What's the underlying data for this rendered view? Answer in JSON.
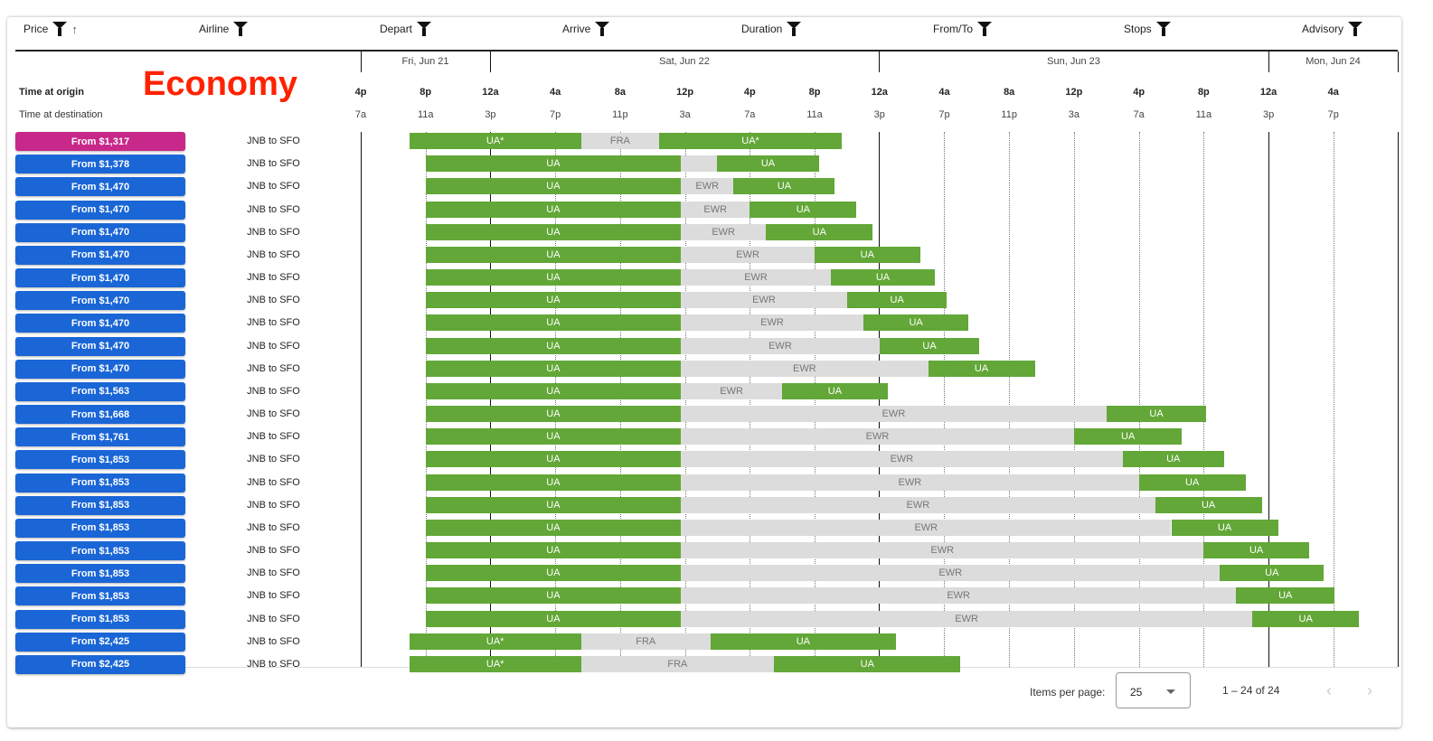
{
  "columns": [
    {
      "label": "Price",
      "sorted": "asc"
    },
    {
      "label": "Airline"
    },
    {
      "label": "Depart"
    },
    {
      "label": "Arrive"
    },
    {
      "label": "Duration"
    },
    {
      "label": "From/To"
    },
    {
      "label": "Stops"
    },
    {
      "label": "Advisory"
    }
  ],
  "cabin_label": "Economy",
  "row_labels": {
    "origin": "Time at origin",
    "destination": "Time at destination"
  },
  "dates": [
    "Fri, Jun 21",
    "Sat, Jun 22",
    "Sun, Jun 23",
    "Mon, Jun 24"
  ],
  "ticks_origin": [
    "4p",
    "8p",
    "12a",
    "4a",
    "8a",
    "12p",
    "4p",
    "8p",
    "12a",
    "4a",
    "8a",
    "12p",
    "4p",
    "8p",
    "12a",
    "4a"
  ],
  "ticks_destination": [
    "7a",
    "11a",
    "3p",
    "7p",
    "11p",
    "3a",
    "7a",
    "11a",
    "3p",
    "7p",
    "11p",
    "3a",
    "7a",
    "11a",
    "3p",
    "7p"
  ],
  "colors": {
    "highlight_price": "#c8288a",
    "price": "#1a66d6",
    "flight": "#62a737",
    "layover": "#dcdcdc"
  },
  "flights": [
    {
      "price": "From $1,317",
      "route": "JNB to SFO",
      "highlight": true,
      "legs": [
        {
          "carrier": "UA*",
          "dep": "Jun 21 19:00",
          "arr": "Jun 22 05:35"
        },
        {
          "carrier": "UA*",
          "dep": "Jun 22 10:25",
          "arr": "Jun 22 21:40"
        }
      ],
      "layover": "FRA"
    },
    {
      "price": "From $1,378",
      "route": "JNB to SFO",
      "legs": [
        {
          "carrier": "UA",
          "dep": "Jun 21 20:00",
          "arr": "Jun 22 11:45"
        },
        {
          "carrier": "UA",
          "dep": "Jun 22 14:00",
          "arr": "Jun 22 20:15"
        }
      ],
      "layover": ""
    },
    {
      "price": "From $1,470",
      "route": "JNB to SFO",
      "legs": [
        {
          "carrier": "UA",
          "dep": "Jun 21 20:00",
          "arr": "Jun 22 11:45"
        },
        {
          "carrier": "UA",
          "dep": "Jun 22 15:00",
          "arr": "Jun 22 21:15"
        }
      ],
      "layover": "EWR"
    },
    {
      "price": "From $1,470",
      "route": "JNB to SFO",
      "legs": [
        {
          "carrier": "UA",
          "dep": "Jun 21 20:00",
          "arr": "Jun 22 11:45"
        },
        {
          "carrier": "UA",
          "dep": "Jun 22 16:00",
          "arr": "Jun 22 22:35"
        }
      ],
      "layover": "EWR"
    },
    {
      "price": "From $1,470",
      "route": "JNB to SFO",
      "legs": [
        {
          "carrier": "UA",
          "dep": "Jun 21 20:00",
          "arr": "Jun 22 11:45"
        },
        {
          "carrier": "UA",
          "dep": "Jun 22 17:00",
          "arr": "Jun 22 23:35"
        }
      ],
      "layover": "EWR"
    },
    {
      "price": "From $1,470",
      "route": "JNB to SFO",
      "legs": [
        {
          "carrier": "UA",
          "dep": "Jun 21 20:00",
          "arr": "Jun 22 11:45"
        },
        {
          "carrier": "UA",
          "dep": "Jun 22 20:00",
          "arr": "Jun 23 02:30"
        }
      ],
      "layover": "EWR"
    },
    {
      "price": "From $1,470",
      "route": "JNB to SFO",
      "legs": [
        {
          "carrier": "UA",
          "dep": "Jun 21 20:00",
          "arr": "Jun 22 11:45"
        },
        {
          "carrier": "UA",
          "dep": "Jun 22 21:00",
          "arr": "Jun 23 03:25"
        }
      ],
      "layover": "EWR"
    },
    {
      "price": "From $1,470",
      "route": "JNB to SFO",
      "legs": [
        {
          "carrier": "UA",
          "dep": "Jun 21 20:00",
          "arr": "Jun 22 11:45"
        },
        {
          "carrier": "UA",
          "dep": "Jun 22 22:00",
          "arr": "Jun 23 04:10"
        }
      ],
      "layover": "EWR"
    },
    {
      "price": "From $1,470",
      "route": "JNB to SFO",
      "legs": [
        {
          "carrier": "UA",
          "dep": "Jun 21 20:00",
          "arr": "Jun 22 11:45"
        },
        {
          "carrier": "UA",
          "dep": "Jun 22 23:00",
          "arr": "Jun 23 05:30"
        }
      ],
      "layover": "EWR"
    },
    {
      "price": "From $1,470",
      "route": "JNB to SFO",
      "legs": [
        {
          "carrier": "UA",
          "dep": "Jun 21 20:00",
          "arr": "Jun 22 11:45"
        },
        {
          "carrier": "UA",
          "dep": "Jun 23 00:00",
          "arr": "Jun 23 06:10"
        }
      ],
      "layover": "EWR"
    },
    {
      "price": "From $1,470",
      "route": "JNB to SFO",
      "legs": [
        {
          "carrier": "UA",
          "dep": "Jun 21 20:00",
          "arr": "Jun 22 11:45"
        },
        {
          "carrier": "UA",
          "dep": "Jun 23 03:00",
          "arr": "Jun 23 09:35"
        }
      ],
      "layover": "EWR"
    },
    {
      "price": "From $1,563",
      "route": "JNB to SFO",
      "legs": [
        {
          "carrier": "UA",
          "dep": "Jun 21 20:00",
          "arr": "Jun 22 11:45"
        },
        {
          "carrier": "UA",
          "dep": "Jun 22 18:00",
          "arr": "Jun 23 00:30"
        }
      ],
      "layover": "EWR"
    },
    {
      "price": "From $1,668",
      "route": "JNB to SFO",
      "legs": [
        {
          "carrier": "UA",
          "dep": "Jun 21 20:00",
          "arr": "Jun 22 11:45"
        },
        {
          "carrier": "UA",
          "dep": "Jun 23 14:00",
          "arr": "Jun 23 20:10"
        }
      ],
      "layover": "EWR"
    },
    {
      "price": "From $1,761",
      "route": "JNB to SFO",
      "legs": [
        {
          "carrier": "UA",
          "dep": "Jun 21 20:00",
          "arr": "Jun 22 11:45"
        },
        {
          "carrier": "UA",
          "dep": "Jun 23 12:00",
          "arr": "Jun 23 18:40"
        }
      ],
      "layover": "EWR"
    },
    {
      "price": "From $1,853",
      "route": "JNB to SFO",
      "legs": [
        {
          "carrier": "UA",
          "dep": "Jun 21 20:00",
          "arr": "Jun 22 11:45"
        },
        {
          "carrier": "UA",
          "dep": "Jun 23 15:00",
          "arr": "Jun 23 21:15"
        }
      ],
      "layover": "EWR"
    },
    {
      "price": "From $1,853",
      "route": "JNB to SFO",
      "legs": [
        {
          "carrier": "UA",
          "dep": "Jun 21 20:00",
          "arr": "Jun 22 11:45"
        },
        {
          "carrier": "UA",
          "dep": "Jun 23 16:00",
          "arr": "Jun 23 22:35"
        }
      ],
      "layover": "EWR"
    },
    {
      "price": "From $1,853",
      "route": "JNB to SFO",
      "legs": [
        {
          "carrier": "UA",
          "dep": "Jun 21 20:00",
          "arr": "Jun 22 11:45"
        },
        {
          "carrier": "UA",
          "dep": "Jun 23 17:00",
          "arr": "Jun 23 23:35"
        }
      ],
      "layover": "EWR"
    },
    {
      "price": "From $1,853",
      "route": "JNB to SFO",
      "legs": [
        {
          "carrier": "UA",
          "dep": "Jun 21 20:00",
          "arr": "Jun 22 11:45"
        },
        {
          "carrier": "UA",
          "dep": "Jun 23 18:00",
          "arr": "Jun 24 00:35"
        }
      ],
      "layover": "EWR"
    },
    {
      "price": "From $1,853",
      "route": "JNB to SFO",
      "legs": [
        {
          "carrier": "UA",
          "dep": "Jun 21 20:00",
          "arr": "Jun 22 11:45"
        },
        {
          "carrier": "UA",
          "dep": "Jun 23 20:00",
          "arr": "Jun 24 02:30"
        }
      ],
      "layover": "EWR"
    },
    {
      "price": "From $1,853",
      "route": "JNB to SFO",
      "legs": [
        {
          "carrier": "UA",
          "dep": "Jun 21 20:00",
          "arr": "Jun 22 11:45"
        },
        {
          "carrier": "UA",
          "dep": "Jun 23 21:00",
          "arr": "Jun 24 03:25"
        }
      ],
      "layover": "EWR"
    },
    {
      "price": "From $1,853",
      "route": "JNB to SFO",
      "legs": [
        {
          "carrier": "UA",
          "dep": "Jun 21 20:00",
          "arr": "Jun 22 11:45"
        },
        {
          "carrier": "UA",
          "dep": "Jun 23 22:00",
          "arr": "Jun 24 04:05"
        }
      ],
      "layover": "EWR"
    },
    {
      "price": "From $1,853",
      "route": "JNB to SFO",
      "legs": [
        {
          "carrier": "UA",
          "dep": "Jun 21 20:00",
          "arr": "Jun 22 11:45"
        },
        {
          "carrier": "UA",
          "dep": "Jun 23 23:00",
          "arr": "Jun 24 05:35"
        }
      ],
      "layover": "EWR"
    },
    {
      "price": "From $2,425",
      "route": "JNB to SFO",
      "legs": [
        {
          "carrier": "UA*",
          "dep": "Jun 21 19:00",
          "arr": "Jun 22 05:35"
        },
        {
          "carrier": "UA",
          "dep": "Jun 22 13:35",
          "arr": "Jun 23 01:00"
        }
      ],
      "layover": "FRA"
    },
    {
      "price": "From $2,425",
      "route": "JNB to SFO",
      "legs": [
        {
          "carrier": "UA*",
          "dep": "Jun 21 19:00",
          "arr": "Jun 22 05:35"
        },
        {
          "carrier": "UA",
          "dep": "Jun 22 17:30",
          "arr": "Jun 23 05:00"
        }
      ],
      "layover": "FRA"
    }
  ],
  "pagination": {
    "label": "Items per page:",
    "page_size": "25",
    "range": "1 – 24 of 24",
    "prev": "‹",
    "next": "›"
  }
}
